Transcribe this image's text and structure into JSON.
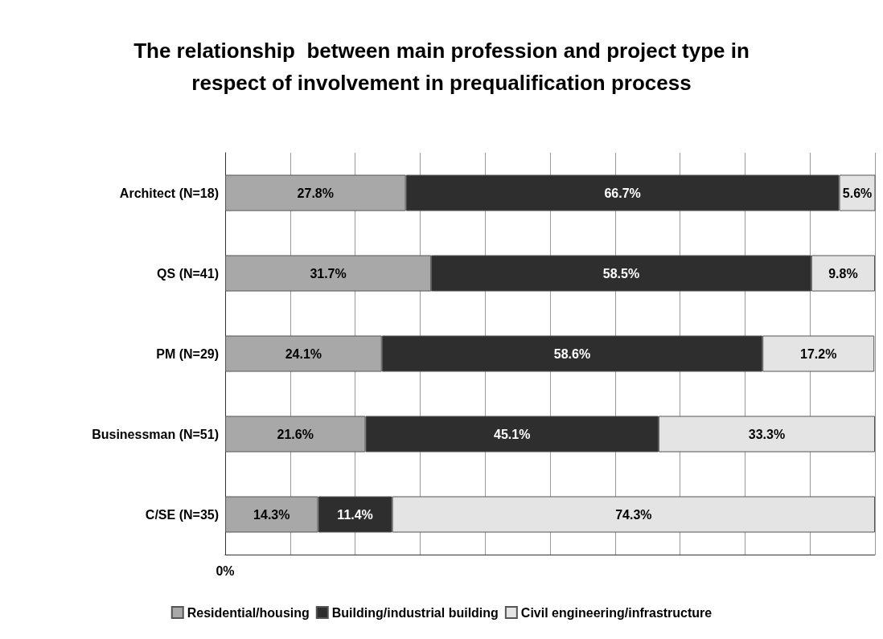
{
  "chart_data": {
    "type": "bar",
    "title": "The relationship  between main profession and project type in\nrespect of involvement in prequalification process",
    "orientation": "horizontal",
    "stacked": true,
    "categories": [
      "Architect (N=18)",
      "QS (N=41)",
      "PM (N=29)",
      "Businessman (N=51)",
      "C/SE (N=35)"
    ],
    "series": [
      {
        "name": "Residential/housing",
        "color": "#a8a8a8",
        "values": [
          27.8,
          31.7,
          24.1,
          21.6,
          14.3
        ],
        "value_labels": [
          "27.8%",
          "31.7%",
          "24.1%",
          "21.6%",
          "14.3%"
        ]
      },
      {
        "name": "Building/industrial building",
        "color": "#2e2e2e",
        "values": [
          66.7,
          58.5,
          58.6,
          45.1,
          11.4
        ],
        "value_labels": [
          "66.7%",
          "58.5%",
          "58.6%",
          "45.1%",
          "11.4%"
        ]
      },
      {
        "name": "Civil engineering/infrastructure",
        "color": "#e4e4e4",
        "values": [
          5.6,
          9.8,
          17.2,
          33.3,
          74.3
        ],
        "value_labels": [
          "5.6%",
          "9.8%",
          "17.2%",
          "33.3%",
          "74.3%"
        ]
      }
    ],
    "xlim": [
      0,
      100
    ],
    "annotations": [
      "0%"
    ],
    "grid": "x",
    "legend": "bottom"
  }
}
